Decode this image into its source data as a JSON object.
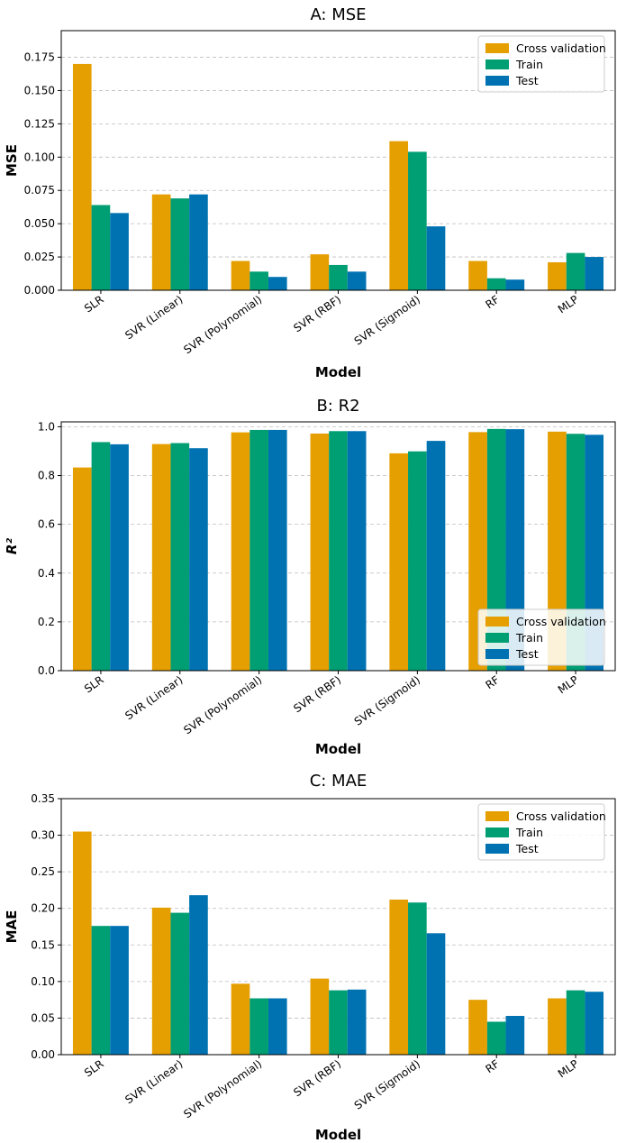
{
  "colors": {
    "Cross validation": "#E69F00",
    "Train": "#009E73",
    "Test": "#0072B2"
  },
  "chart_data": [
    {
      "type": "bar",
      "title": "A: MSE",
      "xlabel": "Model",
      "ylabel": "MSE",
      "ylim": [
        0,
        0.195
      ],
      "yticks": [
        "0.000",
        "0.025",
        "0.050",
        "0.075",
        "0.100",
        "0.125",
        "0.150",
        "0.175"
      ],
      "grid": "y",
      "legend_position": "top-right",
      "categories": [
        "SLR",
        "SVR (Linear)",
        "SVR (Polynomial)",
        "SVR (RBF)",
        "SVR (Sigmoid)",
        "RF",
        "MLP"
      ],
      "series": [
        {
          "name": "Cross validation",
          "values": [
            0.17,
            0.072,
            0.022,
            0.027,
            0.112,
            0.022,
            0.021
          ]
        },
        {
          "name": "Train",
          "values": [
            0.064,
            0.069,
            0.014,
            0.019,
            0.104,
            0.009,
            0.028
          ]
        },
        {
          "name": "Test",
          "values": [
            0.058,
            0.072,
            0.01,
            0.014,
            0.048,
            0.008,
            0.025
          ]
        }
      ]
    },
    {
      "type": "bar",
      "title": "B: R2",
      "xlabel": "Model",
      "ylabel": "R²",
      "ylim": [
        0,
        1.02
      ],
      "yticks": [
        "0.0",
        "0.2",
        "0.4",
        "0.6",
        "0.8",
        "1.0"
      ],
      "grid": "y",
      "legend_position": "bottom-right",
      "categories": [
        "SLR",
        "SVR (Linear)",
        "SVR (Polynomial)",
        "SVR (RBF)",
        "SVR (Sigmoid)",
        "RF",
        "MLP"
      ],
      "series": [
        {
          "name": "Cross validation",
          "values": [
            0.833,
            0.929,
            0.977,
            0.972,
            0.891,
            0.978,
            0.98
          ]
        },
        {
          "name": "Train",
          "values": [
            0.937,
            0.933,
            0.987,
            0.982,
            0.899,
            0.991,
            0.971
          ]
        },
        {
          "name": "Test",
          "values": [
            0.928,
            0.912,
            0.987,
            0.982,
            0.942,
            0.99,
            0.967
          ]
        }
      ]
    },
    {
      "type": "bar",
      "title": "C: MAE",
      "xlabel": "Model",
      "ylabel": "MAE",
      "ylim": [
        0,
        0.35
      ],
      "yticks": [
        "0.00",
        "0.05",
        "0.10",
        "0.15",
        "0.20",
        "0.25",
        "0.30",
        "0.35"
      ],
      "grid": "y",
      "legend_position": "top-right",
      "categories": [
        "SLR",
        "SVR (Linear)",
        "SVR (Polynomial)",
        "SVR (RBF)",
        "SVR (Sigmoid)",
        "RF",
        "MLP"
      ],
      "series": [
        {
          "name": "Cross validation",
          "values": [
            0.305,
            0.201,
            0.097,
            0.104,
            0.212,
            0.075,
            0.077
          ]
        },
        {
          "name": "Train",
          "values": [
            0.176,
            0.194,
            0.077,
            0.088,
            0.208,
            0.045,
            0.088
          ]
        },
        {
          "name": "Test",
          "values": [
            0.176,
            0.218,
            0.077,
            0.089,
            0.166,
            0.053,
            0.086
          ]
        }
      ]
    }
  ]
}
